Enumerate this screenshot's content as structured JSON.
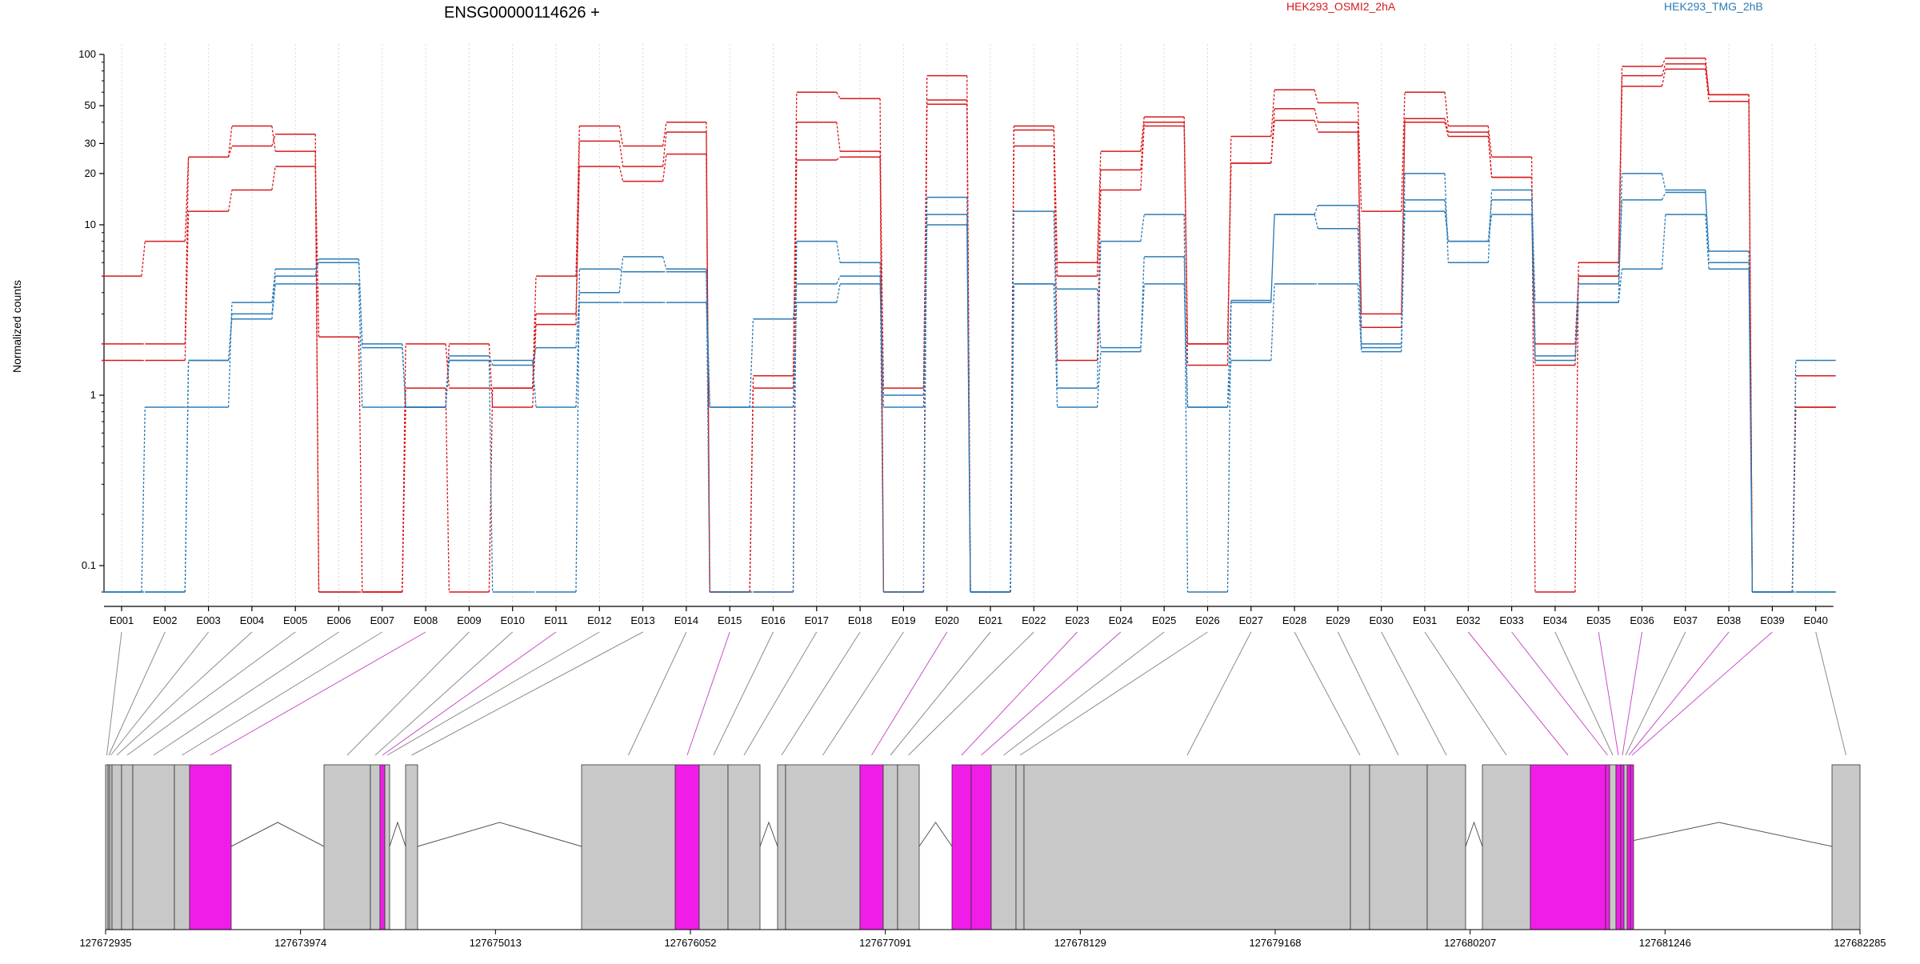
{
  "chart_data": {
    "type": "line",
    "title": "ENSG00000114626 +",
    "ylabel": "Normalized counts",
    "y_scale": "log",
    "y_ticks": [
      "0.1",
      "1",
      "10",
      "20",
      "30",
      "50",
      "100"
    ],
    "ylim": [
      0.07,
      100
    ],
    "grid": "vertical dotted at exon centers",
    "legend": [
      {
        "label": "HEK293_OSMI2_2hA",
        "color": "#d7191c"
      },
      {
        "label": "HEK293_TMG_2hB",
        "color": "#2c7bb6"
      }
    ],
    "categories": [
      "E001",
      "E002",
      "E003",
      "E004",
      "E005",
      "E006",
      "E007",
      "E008",
      "E009",
      "E010",
      "E011",
      "E012",
      "E013",
      "E014",
      "E015",
      "E016",
      "E017",
      "E018",
      "E019",
      "E020",
      "E021",
      "E022",
      "E023",
      "E024",
      "E025",
      "E026",
      "E027",
      "E028",
      "E029",
      "E030",
      "E031",
      "E032",
      "E033",
      "E034",
      "E035",
      "E036",
      "E037",
      "E038",
      "E039",
      "E040"
    ],
    "series": [
      {
        "group": "HEK293_OSMI2_2hA",
        "color": "#d7191c",
        "values": [
          5,
          8,
          25,
          38,
          27,
          0.07,
          0.07,
          1.1,
          0.07,
          1.1,
          5,
          38,
          29,
          40,
          0.07,
          1.1,
          60,
          55,
          0.07,
          75,
          0.07,
          38,
          6,
          27,
          43,
          1.5,
          33,
          62,
          52,
          12,
          60,
          38,
          25,
          0.07,
          6,
          85,
          95,
          58,
          0.07,
          1.3
        ]
      },
      {
        "group": "HEK293_OSMI2_2hA",
        "color": "#d7191c",
        "values": [
          2,
          2,
          25,
          29,
          34,
          0.07,
          0.07,
          2,
          1.1,
          1.1,
          3,
          31,
          22,
          35,
          0.07,
          0.07,
          40,
          27,
          1.1,
          54,
          0.07,
          36,
          5,
          21,
          40,
          2,
          23,
          48,
          40,
          3,
          42,
          35,
          19,
          1.5,
          5,
          75,
          88,
          58,
          0.07,
          0.85
        ]
      },
      {
        "group": "HEK293_OSMI2_2hA",
        "color": "#d7191c",
        "values": [
          1.6,
          1.6,
          12,
          16,
          22,
          2.2,
          0.07,
          0.85,
          2,
          0.85,
          2.6,
          22,
          18,
          26,
          0.07,
          1.3,
          24,
          25,
          0.07,
          51,
          0.07,
          29,
          1.6,
          16,
          38,
          2,
          23,
          41,
          35,
          2.5,
          40,
          33,
          19,
          2,
          5,
          65,
          82,
          53,
          0.07,
          0.85
        ]
      },
      {
        "group": "HEK293_TMG_2hB",
        "color": "#2c7bb6",
        "values": [
          0.07,
          0.85,
          0.85,
          3.5,
          5.5,
          6,
          2,
          0.85,
          1.6,
          0.07,
          0.07,
          5.5,
          5.3,
          5.3,
          0.07,
          0.07,
          8,
          6,
          0.07,
          14.5,
          0.07,
          12,
          1.1,
          8,
          11.5,
          0.07,
          3.5,
          11.5,
          13,
          1.9,
          20,
          6,
          16,
          3.5,
          3.5,
          20,
          16,
          6,
          0.07,
          1.6
        ]
      },
      {
        "group": "HEK293_TMG_2hB",
        "color": "#2c7bb6",
        "values": [
          0.07,
          0.07,
          1.6,
          3,
          5,
          6.3,
          1.9,
          0.85,
          1.7,
          1.5,
          1.9,
          4,
          6.5,
          5.5,
          0.85,
          2.8,
          4.5,
          5,
          1,
          11.5,
          0.07,
          4.5,
          4.2,
          1.9,
          6.5,
          0.85,
          3.6,
          11.5,
          9.5,
          2,
          14,
          8,
          14,
          1.7,
          4.5,
          14,
          15.5,
          7,
          0.07,
          0.07
        ]
      },
      {
        "group": "HEK293_TMG_2hB",
        "color": "#2c7bb6",
        "values": [
          0.07,
          0.07,
          1.6,
          2.8,
          4.5,
          4.5,
          0.85,
          0.85,
          1.6,
          1.6,
          0.85,
          3.5,
          3.5,
          3.5,
          0.85,
          0.85,
          3.5,
          4.5,
          0.85,
          10,
          0.07,
          4.5,
          0.85,
          1.8,
          4.5,
          0.85,
          1.6,
          4.5,
          4.5,
          1.8,
          12,
          8,
          11.5,
          1.6,
          3.5,
          5.5,
          11.5,
          5.5,
          0.07,
          0.07
        ]
      }
    ]
  },
  "gene_model": {
    "coordinate_labels": [
      "127672935",
      "127673974",
      "127675013",
      "127676052",
      "127677091",
      "127678129",
      "127679168",
      "127680207",
      "127681246",
      "127682285"
    ],
    "colors": {
      "exon_default": "#c8c8c8",
      "exon_highlight": "#f01de8",
      "connector_default": "#8c8c8c",
      "connector_highlight": "#c84fc8"
    },
    "exon_highlight": [
      false,
      false,
      false,
      false,
      false,
      false,
      false,
      true,
      false,
      false,
      true,
      false,
      false,
      false,
      true,
      false,
      false,
      false,
      false,
      true,
      false,
      false,
      true,
      true,
      false,
      false,
      false,
      false,
      false,
      false,
      false,
      true,
      true,
      false,
      true,
      true,
      false,
      true,
      true,
      false
    ]
  }
}
